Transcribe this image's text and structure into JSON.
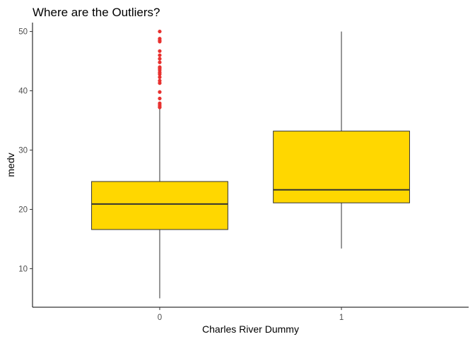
{
  "chart_data": {
    "type": "box",
    "title": "Where are the Outliers?",
    "xlabel": "Charles River Dummy",
    "ylabel": "medv",
    "categories": [
      "0",
      "1"
    ],
    "ylim": [
      3.5,
      51.5
    ],
    "yticks": [
      10,
      20,
      30,
      40,
      50
    ],
    "boxes": [
      {
        "category": "0",
        "whisker_low": 5.0,
        "q1": 16.6,
        "median": 20.9,
        "q3": 24.7,
        "whisker_high": 37.0,
        "outliers": [
          37.2,
          37.3,
          37.6,
          37.9,
          38.7,
          39.8,
          41.3,
          41.7,
          42.3,
          42.8,
          43.1,
          43.5,
          43.8,
          44.0,
          44.8,
          45.4,
          46.0,
          46.7,
          48.3,
          48.5,
          48.8,
          50.0
        ]
      },
      {
        "category": "1",
        "whisker_low": 13.4,
        "q1": 21.1,
        "median": 23.3,
        "q3": 33.2,
        "whisker_high": 50.0,
        "outliers": []
      }
    ],
    "colors": {
      "box_fill": "#FFD700",
      "box_stroke": "#333333",
      "outlier": "#E8312F",
      "axis": "#000000"
    },
    "grid": false,
    "legend": "none"
  }
}
